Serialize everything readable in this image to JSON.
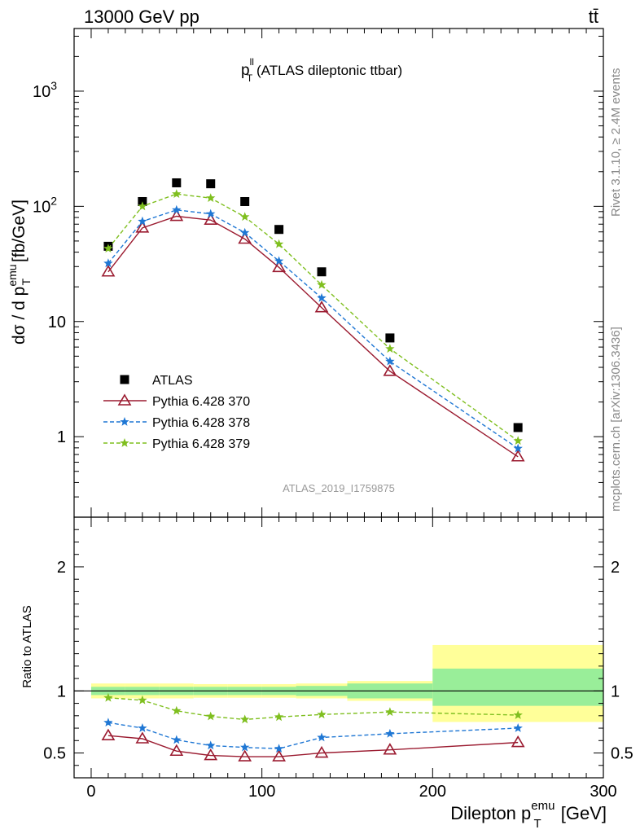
{
  "header": {
    "collision": "13000 GeV pp",
    "process": "tt̄"
  },
  "side_labels": {
    "rivet": "Rivet 3.1.10, ≥ 2.4M events",
    "mcplots": "mcplots.cern.ch [arXiv:1306.3436]"
  },
  "chart_data": [
    {
      "type": "line",
      "title": "p_T^ll (ATLAS dileptonic ttbar)",
      "title_main": "p",
      "title_sup": "ll",
      "title_sub": "T",
      "title_rest": " (ATLAS dileptonic ttbar)",
      "ylabel": "dσ / d p_T^emu [fb/GeV]",
      "ylabel_main": "dσ / d p",
      "ylabel_sup": "emu",
      "ylabel_sub": "T",
      "ylabel_rest": " [fb/GeV]",
      "yscale": "log",
      "ylim": [
        0.2,
        3500
      ],
      "xlim": [
        -10,
        300
      ],
      "y_ticks": [
        1,
        10,
        100,
        1000
      ],
      "y_tick_labels": [
        "1",
        "10",
        "10^2",
        "10^3"
      ],
      "legend_position": "middle-left",
      "analysis_id": "ATLAS_2019_I1759875",
      "x": [
        10,
        30,
        50,
        70,
        90,
        110,
        135,
        175,
        250
      ],
      "series": [
        {
          "name": "ATLAS",
          "marker": "square",
          "color": "#000000",
          "values": [
            45,
            110,
            160,
            157,
            110,
            63,
            27,
            7.2,
            1.2
          ]
        },
        {
          "name": "Pythia 6.428 370",
          "marker": "triangle-open",
          "color": "#9b1b30",
          "dash": "solid",
          "values": [
            27,
            65,
            82,
            76,
            52,
            29.5,
            13.2,
            3.7,
            0.67
          ]
        },
        {
          "name": "Pythia 6.428 378",
          "marker": "star",
          "color": "#1f77d4",
          "dash": "dashed",
          "values": [
            32,
            74,
            93,
            86,
            59,
            33.5,
            16,
            4.5,
            0.79
          ]
        },
        {
          "name": "Pythia 6.428 379",
          "marker": "star",
          "color": "#7fbf1f",
          "dash": "dashed",
          "values": [
            43,
            100,
            128,
            118,
            81,
            47,
            20.8,
            5.8,
            0.92
          ]
        }
      ]
    },
    {
      "type": "line",
      "ylabel": "Ratio to ATLAS",
      "xlabel": "Dilepton p_T^emu [GeV]",
      "xlabel_main": "Dilepton p",
      "xlabel_sup": "emu",
      "xlabel_sub": "T",
      "xlabel_rest": " [GeV]",
      "xlim": [
        -10,
        300
      ],
      "ylim": [
        0.3,
        2.4
      ],
      "x_ticks": [
        0,
        100,
        200,
        300
      ],
      "y_ticks": [
        0.5,
        1,
        2
      ],
      "reference_line": 1,
      "bands": [
        {
          "xlo": 0,
          "xhi": 20,
          "inner": [
            0.967,
            1.033
          ],
          "outer": [
            0.94,
            1.06
          ]
        },
        {
          "xlo": 20,
          "xhi": 40,
          "inner": [
            0.967,
            1.033
          ],
          "outer": [
            0.94,
            1.06
          ]
        },
        {
          "xlo": 40,
          "xhi": 60,
          "inner": [
            0.967,
            1.033
          ],
          "outer": [
            0.94,
            1.06
          ]
        },
        {
          "xlo": 60,
          "xhi": 80,
          "inner": [
            0.967,
            1.033
          ],
          "outer": [
            0.945,
            1.055
          ]
        },
        {
          "xlo": 80,
          "xhi": 100,
          "inner": [
            0.967,
            1.033
          ],
          "outer": [
            0.945,
            1.055
          ]
        },
        {
          "xlo": 100,
          "xhi": 120,
          "inner": [
            0.967,
            1.033
          ],
          "outer": [
            0.945,
            1.055
          ]
        },
        {
          "xlo": 120,
          "xhi": 150,
          "inner": [
            0.96,
            1.04
          ],
          "outer": [
            0.94,
            1.06
          ]
        },
        {
          "xlo": 150,
          "xhi": 200,
          "inner": [
            0.94,
            1.06
          ],
          "outer": [
            0.92,
            1.08
          ]
        },
        {
          "xlo": 200,
          "xhi": 300,
          "inner": [
            0.88,
            1.18
          ],
          "outer": [
            0.75,
            1.37
          ]
        }
      ],
      "series": [
        {
          "name": "Pythia 6.428 370",
          "marker": "triangle-open",
          "color": "#9b1b30",
          "dash": "solid",
          "values": [
            0.64,
            0.615,
            0.515,
            0.48,
            0.47,
            0.47,
            0.5,
            0.525,
            0.585
          ]
        },
        {
          "name": "Pythia 6.428 378",
          "marker": "star",
          "color": "#1f77d4",
          "dash": "dashed",
          "values": [
            0.745,
            0.7,
            0.605,
            0.56,
            0.545,
            0.535,
            0.625,
            0.655,
            0.7
          ]
        },
        {
          "name": "Pythia 6.428 379",
          "marker": "star",
          "color": "#7fbf1f",
          "dash": "dashed",
          "values": [
            0.945,
            0.925,
            0.84,
            0.795,
            0.77,
            0.79,
            0.81,
            0.83,
            0.805
          ]
        }
      ]
    }
  ]
}
